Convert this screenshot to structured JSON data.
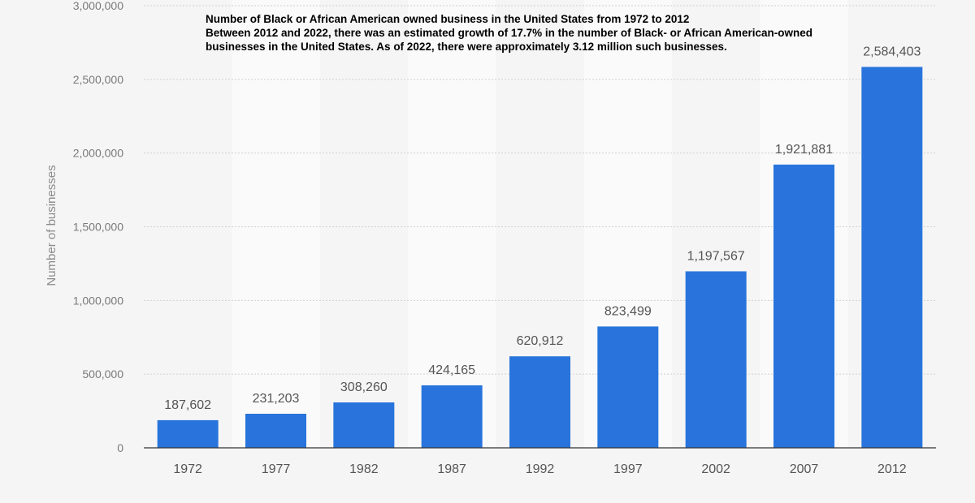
{
  "caption": {
    "line1": "Number of Black or African American owned business in the United States from 1972 to 2012",
    "line2": "Between 2012 and 2022, there was an estimated growth of 17.7% in the number of Black- or African American-owned businesses in the United States.  As of 2022, there were approximately 3.12 million such businesses."
  },
  "colors": {
    "bar": "#2874dc",
    "background": "#f5f5f5",
    "band": "#fafafa",
    "grid": "#cfcfcf",
    "axis": "#333333"
  },
  "chart_data": {
    "type": "bar",
    "title": "",
    "xlabel": "",
    "ylabel": "Number of businesses",
    "categories": [
      "1972",
      "1977",
      "1982",
      "1987",
      "1992",
      "1997",
      "2002",
      "2007",
      "2012"
    ],
    "values": [
      187602,
      231203,
      308260,
      424165,
      620912,
      823499,
      1197567,
      1921881,
      2584403
    ],
    "data_labels": [
      "187,602",
      "231,203",
      "308,260",
      "424,165",
      "620,912",
      "823,499",
      "1,197,567",
      "1,921,881",
      "2,584,403"
    ],
    "ylim": [
      0,
      3000000
    ],
    "yticks": [
      0,
      500000,
      1000000,
      1500000,
      2000000,
      2500000,
      3000000
    ],
    "ytick_labels": [
      "0",
      "500,000",
      "1,000,000",
      "1,500,000",
      "2,000,000",
      "2,500,000",
      "3,000,000"
    ],
    "grid": true,
    "legend": "none"
  }
}
